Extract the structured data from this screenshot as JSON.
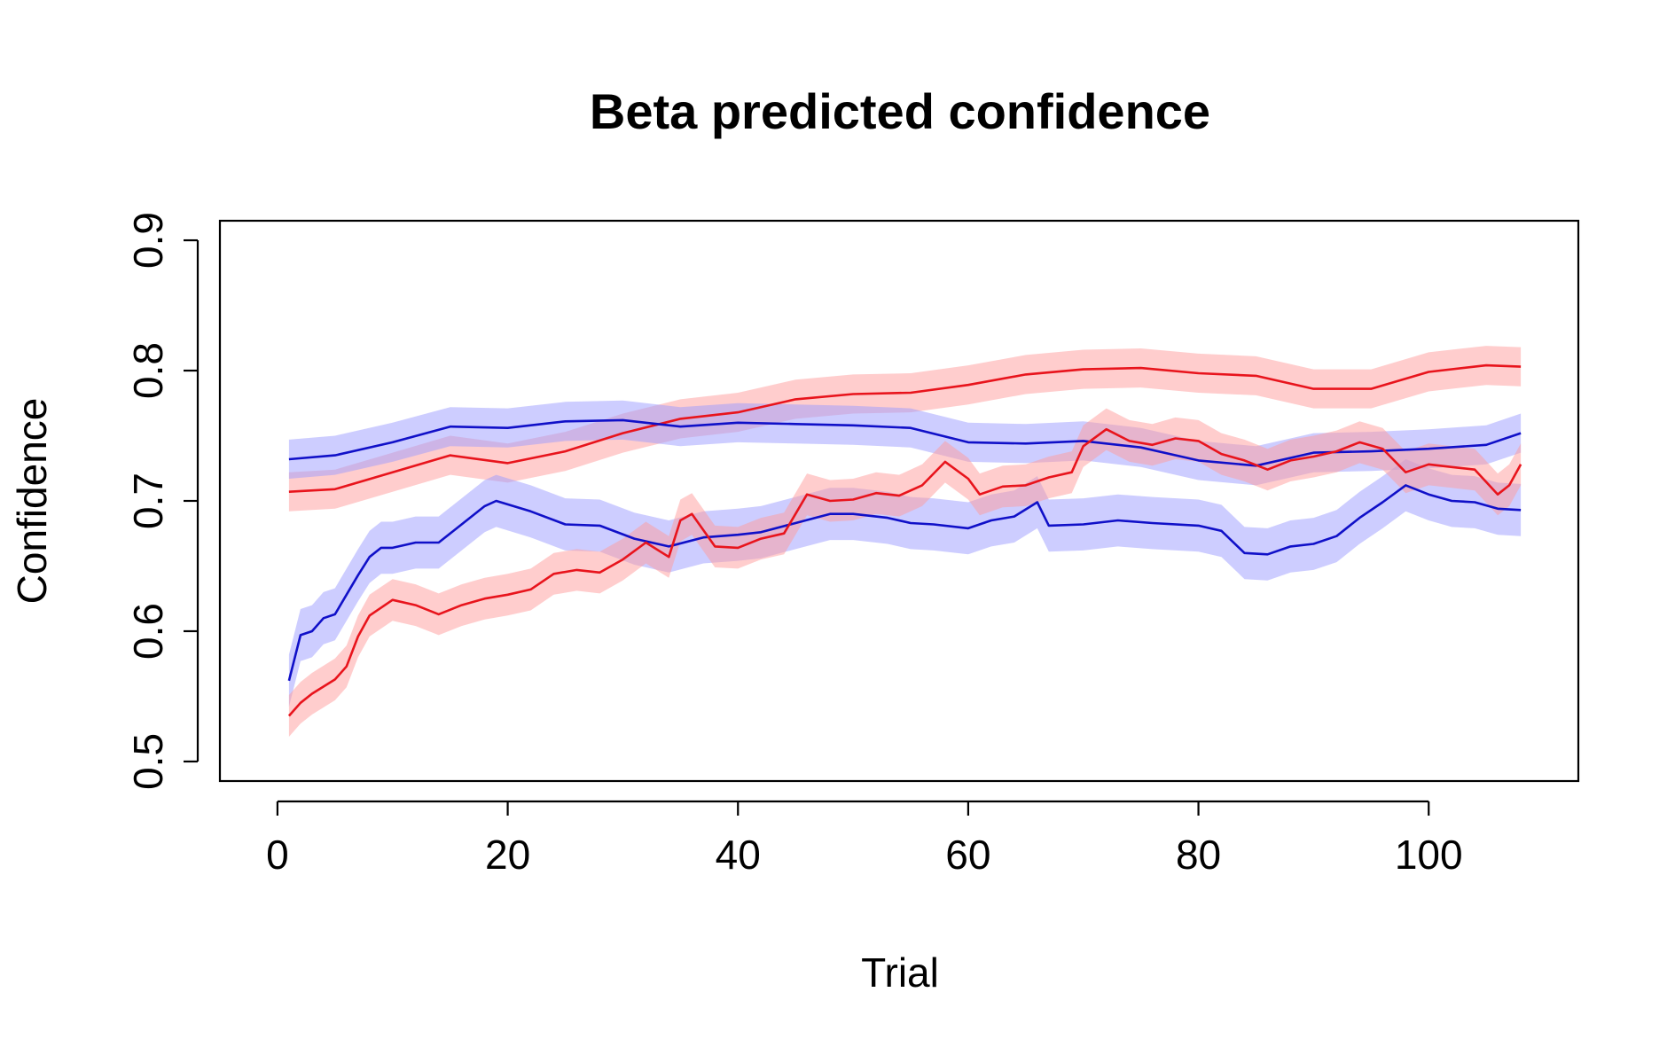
{
  "chart_data": {
    "type": "line",
    "title": "Beta predicted confidence",
    "xlabel": "Trial",
    "ylabel": "Confidence",
    "xlim": [
      -5,
      113
    ],
    "ylim": [
      0.485,
      0.915
    ],
    "xticks": [
      0,
      20,
      40,
      60,
      80,
      100
    ],
    "xtick_labels": [
      "0",
      "20",
      "40",
      "60",
      "80",
      "100"
    ],
    "yticks": [
      0.5,
      0.6,
      0.7,
      0.8,
      0.9
    ],
    "ytick_labels": [
      "0.5",
      "0.6",
      "0.7",
      "0.8",
      "0.9"
    ],
    "grid": false,
    "legend": null,
    "colors": {
      "red": "#e8141c",
      "blue": "#1010c8",
      "red_band": "#ff9c9c",
      "blue_band": "#9c9cff"
    },
    "series": [
      {
        "color": "red",
        "band_half_width": 0.015,
        "points": [
          [
            1,
            0.707
          ],
          [
            5,
            0.709
          ],
          [
            10,
            0.722
          ],
          [
            15,
            0.735
          ],
          [
            20,
            0.729
          ],
          [
            25,
            0.738
          ],
          [
            30,
            0.752
          ],
          [
            35,
            0.763
          ],
          [
            40,
            0.768
          ],
          [
            45,
            0.778
          ],
          [
            50,
            0.782
          ],
          [
            55,
            0.783
          ],
          [
            60,
            0.789
          ],
          [
            65,
            0.797
          ],
          [
            70,
            0.801
          ],
          [
            75,
            0.802
          ],
          [
            80,
            0.798
          ],
          [
            85,
            0.796
          ],
          [
            90,
            0.786
          ],
          [
            95,
            0.786
          ],
          [
            100,
            0.799
          ],
          [
            105,
            0.804
          ],
          [
            108,
            0.803
          ]
        ]
      },
      {
        "color": "blue",
        "band_half_width": 0.015,
        "points": [
          [
            1,
            0.732
          ],
          [
            5,
            0.735
          ],
          [
            10,
            0.745
          ],
          [
            15,
            0.757
          ],
          [
            20,
            0.756
          ],
          [
            25,
            0.761
          ],
          [
            30,
            0.762
          ],
          [
            35,
            0.757
          ],
          [
            40,
            0.76
          ],
          [
            45,
            0.759
          ],
          [
            50,
            0.758
          ],
          [
            55,
            0.756
          ],
          [
            60,
            0.745
          ],
          [
            65,
            0.744
          ],
          [
            70,
            0.746
          ],
          [
            75,
            0.741
          ],
          [
            80,
            0.731
          ],
          [
            85,
            0.727
          ],
          [
            90,
            0.737
          ],
          [
            95,
            0.738
          ],
          [
            100,
            0.74
          ],
          [
            105,
            0.743
          ],
          [
            108,
            0.752
          ]
        ]
      },
      {
        "color": "blue",
        "band_half_width": 0.02,
        "points": [
          [
            1,
            0.562
          ],
          [
            2,
            0.597
          ],
          [
            3,
            0.6
          ],
          [
            4,
            0.61
          ],
          [
            5,
            0.613
          ],
          [
            6,
            0.628
          ],
          [
            7,
            0.643
          ],
          [
            8,
            0.657
          ],
          [
            9,
            0.664
          ],
          [
            10,
            0.664
          ],
          [
            12,
            0.668
          ],
          [
            14,
            0.668
          ],
          [
            16,
            0.682
          ],
          [
            18,
            0.696
          ],
          [
            19,
            0.7
          ],
          [
            22,
            0.692
          ],
          [
            25,
            0.682
          ],
          [
            28,
            0.681
          ],
          [
            31,
            0.671
          ],
          [
            34,
            0.665
          ],
          [
            37,
            0.672
          ],
          [
            40,
            0.674
          ],
          [
            42,
            0.676
          ],
          [
            45,
            0.683
          ],
          [
            48,
            0.69
          ],
          [
            50,
            0.69
          ],
          [
            53,
            0.687
          ],
          [
            55,
            0.683
          ],
          [
            57,
            0.682
          ],
          [
            60,
            0.679
          ],
          [
            62,
            0.685
          ],
          [
            64,
            0.688
          ],
          [
            66,
            0.699
          ],
          [
            67,
            0.681
          ],
          [
            70,
            0.682
          ],
          [
            73,
            0.685
          ],
          [
            76,
            0.683
          ],
          [
            80,
            0.681
          ],
          [
            82,
            0.677
          ],
          [
            84,
            0.66
          ],
          [
            86,
            0.659
          ],
          [
            88,
            0.665
          ],
          [
            90,
            0.667
          ],
          [
            92,
            0.673
          ],
          [
            94,
            0.687
          ],
          [
            96,
            0.699
          ],
          [
            98,
            0.712
          ],
          [
            100,
            0.705
          ],
          [
            102,
            0.7
          ],
          [
            104,
            0.699
          ],
          [
            106,
            0.694
          ],
          [
            108,
            0.693
          ]
        ]
      },
      {
        "color": "red",
        "band_half_width": 0.016,
        "points": [
          [
            1,
            0.535
          ],
          [
            2,
            0.545
          ],
          [
            3,
            0.552
          ],
          [
            5,
            0.563
          ],
          [
            6,
            0.573
          ],
          [
            7,
            0.596
          ],
          [
            8,
            0.612
          ],
          [
            10,
            0.624
          ],
          [
            12,
            0.62
          ],
          [
            14,
            0.613
          ],
          [
            16,
            0.62
          ],
          [
            18,
            0.625
          ],
          [
            20,
            0.628
          ],
          [
            22,
            0.632
          ],
          [
            24,
            0.644
          ],
          [
            26,
            0.647
          ],
          [
            28,
            0.645
          ],
          [
            30,
            0.655
          ],
          [
            32,
            0.668
          ],
          [
            34,
            0.657
          ],
          [
            35,
            0.685
          ],
          [
            36,
            0.69
          ],
          [
            38,
            0.665
          ],
          [
            40,
            0.664
          ],
          [
            42,
            0.671
          ],
          [
            44,
            0.675
          ],
          [
            46,
            0.705
          ],
          [
            48,
            0.7
          ],
          [
            50,
            0.701
          ],
          [
            52,
            0.706
          ],
          [
            54,
            0.704
          ],
          [
            56,
            0.712
          ],
          [
            58,
            0.73
          ],
          [
            60,
            0.717
          ],
          [
            61,
            0.705
          ],
          [
            63,
            0.711
          ],
          [
            65,
            0.712
          ],
          [
            67,
            0.718
          ],
          [
            69,
            0.722
          ],
          [
            70,
            0.742
          ],
          [
            72,
            0.755
          ],
          [
            74,
            0.746
          ],
          [
            76,
            0.743
          ],
          [
            78,
            0.748
          ],
          [
            80,
            0.746
          ],
          [
            82,
            0.736
          ],
          [
            84,
            0.731
          ],
          [
            86,
            0.724
          ],
          [
            88,
            0.731
          ],
          [
            90,
            0.734
          ],
          [
            92,
            0.738
          ],
          [
            94,
            0.745
          ],
          [
            96,
            0.74
          ],
          [
            98,
            0.722
          ],
          [
            100,
            0.728
          ],
          [
            102,
            0.726
          ],
          [
            104,
            0.724
          ],
          [
            106,
            0.705
          ],
          [
            107,
            0.712
          ],
          [
            108,
            0.728
          ]
        ]
      }
    ]
  }
}
